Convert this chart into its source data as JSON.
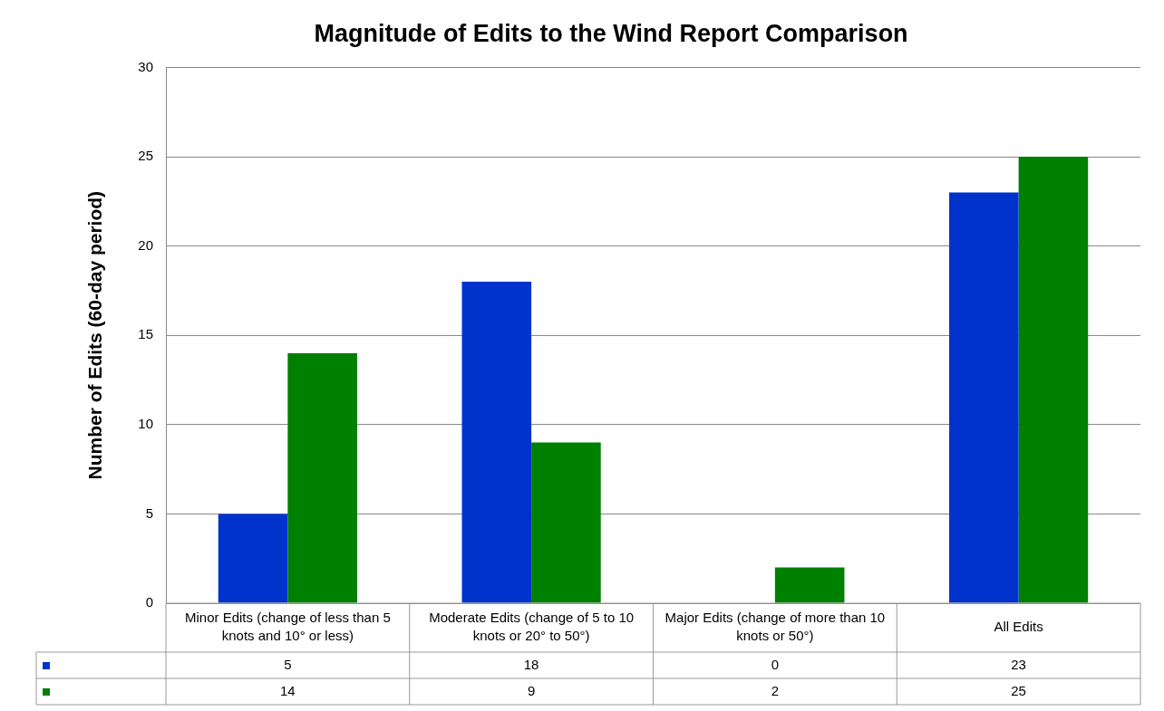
{
  "chart_data": {
    "type": "bar",
    "title": "Magnitude of Edits to the Wind Report Comparison",
    "ylabel": "Number of Edits (60-day period)",
    "categories": [
      "Minor Edits (change of less than 5 knots and 10° or less)",
      "Moderate Edits (change of 5 to 10 knots or 20° to 50°)",
      "Major Edits (change of more than 10 knots or 50°)",
      "All Edits"
    ],
    "series": [
      {
        "color": "#0033cc",
        "values": [
          5,
          18,
          0,
          23
        ]
      },
      {
        "color": "#008000",
        "values": [
          14,
          9,
          2,
          25
        ]
      }
    ],
    "ylim": [
      0,
      30
    ],
    "yticks": [
      0,
      5,
      10,
      15,
      20,
      25,
      30
    ],
    "grid": "y",
    "data_labels": true
  }
}
